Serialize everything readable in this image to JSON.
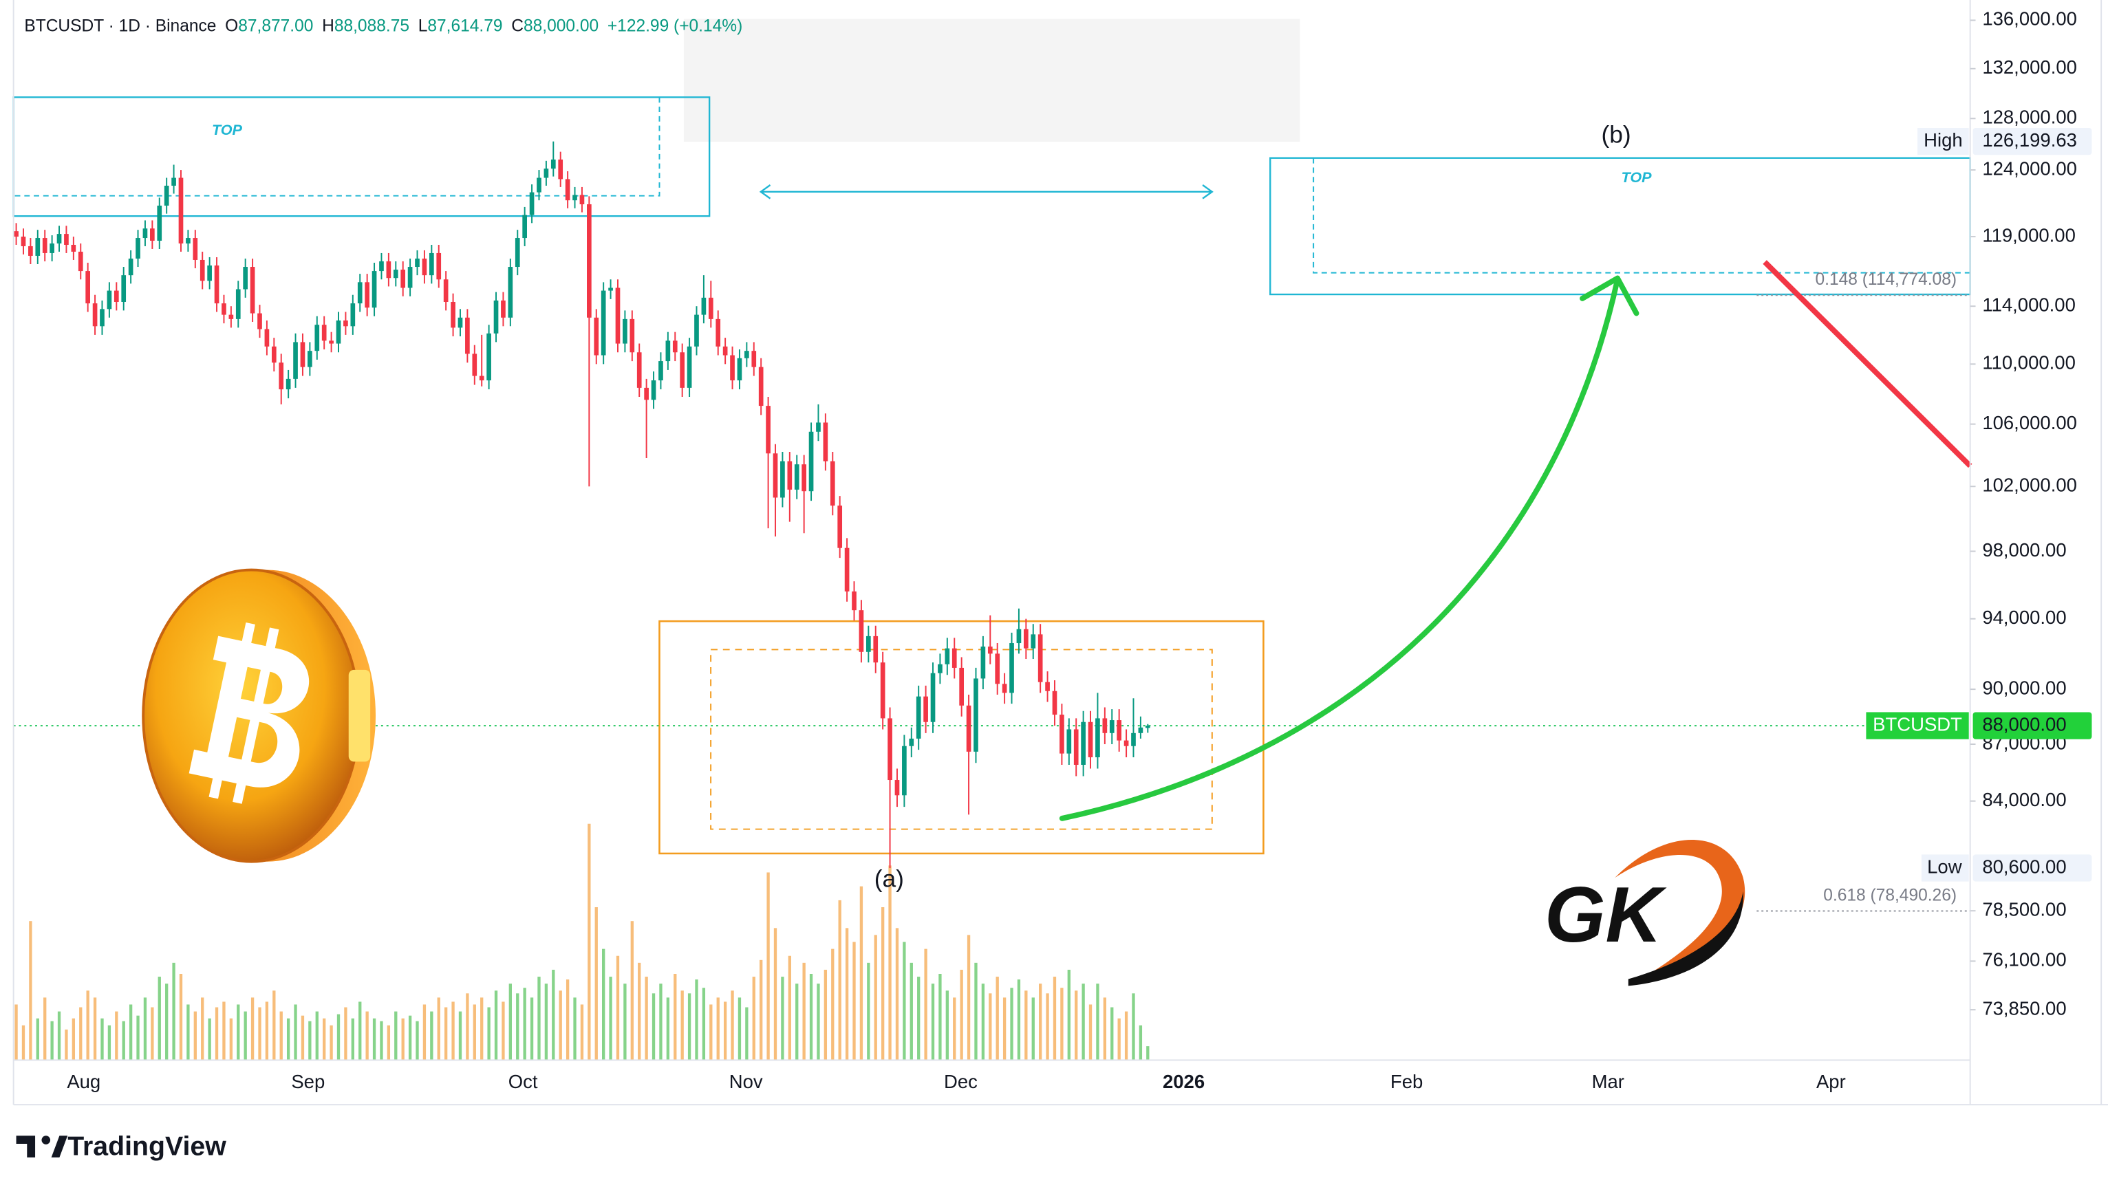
{
  "header": {
    "symbol": "BTCUSDT · 1D · Binance",
    "open_label": "O",
    "open": "87,877.00",
    "high_label": "H",
    "high": "88,088.75",
    "low_label": "L",
    "low": "87,614.79",
    "close_label": "C",
    "close": "88,000.00",
    "change": "+122.99 (+0.14%)"
  },
  "chart_data": {
    "type": "candlestick",
    "symbol": "BTCUSDT",
    "up_color": "#089981",
    "down_color": "#f23645",
    "volume_up_color": "#86d38a",
    "volume_down_color": "#f7bd7a",
    "log_scale": true,
    "grid": false,
    "ylim": [
      71590,
      137711
    ],
    "yticks": [
      {
        "value": 136000,
        "label": "136,000.00"
      },
      {
        "value": 132000,
        "label": "132,000.00"
      },
      {
        "value": 128000,
        "label": "128,000.00"
      },
      {
        "value": 124000,
        "label": "124,000.00"
      },
      {
        "value": 119000,
        "label": "119,000.00"
      },
      {
        "value": 114000,
        "label": "114,000.00"
      },
      {
        "value": 110000,
        "label": "110,000.00"
      },
      {
        "value": 106000,
        "label": "106,000.00"
      },
      {
        "value": 102000,
        "label": "102,000.00"
      },
      {
        "value": 98000,
        "label": "98,000.00"
      },
      {
        "value": 94000,
        "label": "94,000.00"
      },
      {
        "value": 90000,
        "label": "90,000.00"
      },
      {
        "value": 87000,
        "label": "87,000.00"
      },
      {
        "value": 84000,
        "label": "84,000.00"
      },
      {
        "value": 78500,
        "label": "78,500.00"
      },
      {
        "value": 76100,
        "label": "76,100.00"
      },
      {
        "value": 73850,
        "label": "73,850.00"
      }
    ],
    "x_labels": [
      "Aug",
      "Sep",
      "Oct",
      "Nov",
      "Dec",
      "2026",
      "Feb",
      "Mar",
      "Apr"
    ],
    "last_price": {
      "value": 88000,
      "label": "88,000.00"
    },
    "high": {
      "name": "High",
      "value": 126199.63,
      "label": "126,199.63"
    },
    "low": {
      "name": "Low",
      "value": 80600,
      "label": "80,600.00"
    },
    "fib_levels": [
      {
        "value": 114774.08,
        "label": "0.148 (114,774.08)"
      },
      {
        "value": 78490.26,
        "label": "0.618 (78,490.26)"
      }
    ],
    "annotations": {
      "top_left": "TOP",
      "top_right": "TOP",
      "wave_a": "(a)",
      "wave_b": "(b)"
    },
    "candles": [
      [
        119400,
        120000,
        118400,
        119000
      ],
      [
        119000,
        119600,
        117700,
        118300
      ],
      [
        118300,
        118900,
        117000,
        117600
      ],
      [
        117600,
        119500,
        117000,
        118900
      ],
      [
        118900,
        119500,
        117200,
        117800
      ],
      [
        117800,
        119100,
        117200,
        118500
      ],
      [
        118500,
        119800,
        117900,
        119200
      ],
      [
        119200,
        119800,
        117800,
        118400
      ],
      [
        118400,
        119000,
        117300,
        117900
      ],
      [
        117900,
        118500,
        115900,
        116500
      ],
      [
        116500,
        117100,
        113600,
        114200
      ],
      [
        114200,
        114800,
        112000,
        112600
      ],
      [
        112600,
        114400,
        112000,
        113800
      ],
      [
        113800,
        115700,
        113200,
        115100
      ],
      [
        115100,
        115700,
        113700,
        114300
      ],
      [
        114300,
        116800,
        113700,
        116200
      ],
      [
        116200,
        118000,
        115600,
        117400
      ],
      [
        117400,
        119500,
        116800,
        118900
      ],
      [
        118900,
        120200,
        118300,
        119600
      ],
      [
        119600,
        120200,
        118100,
        118700
      ],
      [
        118700,
        121900,
        118100,
        121300
      ],
      [
        121300,
        123400,
        120700,
        122800
      ],
      [
        122800,
        124400,
        122200,
        123400
      ],
      [
        123400,
        124000,
        117900,
        118500
      ],
      [
        118500,
        119500,
        117900,
        118900
      ],
      [
        118900,
        119500,
        116700,
        117300
      ],
      [
        117300,
        117900,
        115200,
        115800
      ],
      [
        115800,
        117500,
        115200,
        116900
      ],
      [
        116900,
        117500,
        113600,
        114200
      ],
      [
        114200,
        114800,
        112800,
        113400
      ],
      [
        113400,
        114000,
        112500,
        113100
      ],
      [
        113100,
        115800,
        112500,
        115200
      ],
      [
        115200,
        117400,
        114600,
        116800
      ],
      [
        116800,
        117400,
        112900,
        113500
      ],
      [
        113500,
        114100,
        111800,
        112400
      ],
      [
        112400,
        113000,
        110600,
        111200
      ],
      [
        111200,
        111800,
        109500,
        110100
      ],
      [
        110100,
        110700,
        107300,
        108300
      ],
      [
        108300,
        109600,
        107700,
        109000
      ],
      [
        109000,
        112100,
        108400,
        111500
      ],
      [
        111500,
        112100,
        109200,
        109800
      ],
      [
        109800,
        111500,
        109200,
        110900
      ],
      [
        110900,
        113300,
        110300,
        112700
      ],
      [
        112700,
        113300,
        111000,
        111600
      ],
      [
        111600,
        112200,
        110800,
        111400
      ],
      [
        111400,
        113600,
        110800,
        113000
      ],
      [
        113000,
        113600,
        112000,
        112600
      ],
      [
        112600,
        114800,
        112000,
        114200
      ],
      [
        114200,
        116300,
        113600,
        115700
      ],
      [
        115700,
        116300,
        113300,
        113900
      ],
      [
        113900,
        117100,
        113300,
        116500
      ],
      [
        116500,
        117800,
        115900,
        117200
      ],
      [
        117200,
        117800,
        115400,
        116000
      ],
      [
        116000,
        117200,
        115400,
        116600
      ],
      [
        116600,
        117200,
        114700,
        115300
      ],
      [
        115300,
        117400,
        114700,
        116800
      ],
      [
        116800,
        118000,
        116200,
        117400
      ],
      [
        117400,
        118000,
        115600,
        116200
      ],
      [
        116200,
        118400,
        115600,
        117800
      ],
      [
        117800,
        118400,
        115300,
        115900
      ],
      [
        115900,
        116500,
        113700,
        114300
      ],
      [
        114300,
        114900,
        111900,
        112500
      ],
      [
        112500,
        113800,
        111900,
        113200
      ],
      [
        113200,
        113800,
        110100,
        110700
      ],
      [
        110700,
        111300,
        108600,
        109200
      ],
      [
        109200,
        112000,
        108500,
        108900
      ],
      [
        108900,
        112700,
        108300,
        112100
      ],
      [
        112100,
        115000,
        111500,
        114400
      ],
      [
        114400,
        115000,
        112600,
        113200
      ],
      [
        113200,
        117400,
        112600,
        116800
      ],
      [
        116800,
        119500,
        116200,
        118900
      ],
      [
        118900,
        121200,
        118300,
        120600
      ],
      [
        120600,
        122900,
        120000,
        122300
      ],
      [
        122300,
        124000,
        121700,
        123400
      ],
      [
        123400,
        124700,
        122800,
        124100
      ],
      [
        124100,
        126199.63,
        123500,
        124800
      ],
      [
        124800,
        125400,
        122700,
        123300
      ],
      [
        123300,
        123900,
        121100,
        121700
      ],
      [
        121700,
        122700,
        121100,
        122100
      ],
      [
        122100,
        122700,
        120800,
        121400
      ],
      [
        121400,
        122000,
        102000,
        113200
      ],
      [
        113200,
        113800,
        110000,
        110600
      ],
      [
        110600,
        115700,
        110000,
        115100
      ],
      [
        115100,
        115900,
        114500,
        115300
      ],
      [
        115300,
        115900,
        110800,
        111400
      ],
      [
        111400,
        113700,
        110800,
        113100
      ],
      [
        113100,
        113700,
        110200,
        110800
      ],
      [
        110800,
        111400,
        107800,
        108400
      ],
      [
        108400,
        109000,
        103800,
        107600
      ],
      [
        107600,
        109500,
        107000,
        108900
      ],
      [
        108900,
        110800,
        108300,
        110200
      ],
      [
        110200,
        112200,
        109600,
        111600
      ],
      [
        111600,
        112200,
        110200,
        110800
      ],
      [
        110800,
        111400,
        107800,
        108400
      ],
      [
        108400,
        111800,
        107800,
        111200
      ],
      [
        111200,
        114000,
        110600,
        113400
      ],
      [
        113400,
        116200,
        112800,
        114600
      ],
      [
        114600,
        115800,
        112500,
        113100
      ],
      [
        113100,
        113700,
        110600,
        111200
      ],
      [
        111200,
        111800,
        110000,
        110600
      ],
      [
        110600,
        111200,
        108300,
        108900
      ],
      [
        108900,
        111000,
        108300,
        110400
      ],
      [
        110400,
        111500,
        109800,
        110900
      ],
      [
        110900,
        111500,
        109200,
        109800
      ],
      [
        109800,
        110400,
        106600,
        107200
      ],
      [
        107200,
        107800,
        99400,
        104100
      ],
      [
        104100,
        104700,
        98900,
        101300
      ],
      [
        101300,
        104200,
        100700,
        103600
      ],
      [
        103600,
        104200,
        99800,
        101800
      ],
      [
        101800,
        104000,
        101200,
        103400
      ],
      [
        103400,
        104000,
        99100,
        101700
      ],
      [
        101700,
        106100,
        101100,
        105500
      ],
      [
        105500,
        107300,
        104900,
        106100
      ],
      [
        106100,
        106700,
        103000,
        103600
      ],
      [
        103600,
        104200,
        100200,
        100800
      ],
      [
        100800,
        101400,
        97600,
        98200
      ],
      [
        98200,
        98800,
        95000,
        95600
      ],
      [
        95600,
        96200,
        93900,
        94500
      ],
      [
        94500,
        95100,
        91500,
        92100
      ],
      [
        92100,
        93600,
        91500,
        93000
      ],
      [
        93000,
        93600,
        90900,
        91500
      ],
      [
        91500,
        92100,
        87800,
        88400
      ],
      [
        88400,
        89000,
        80600,
        85100
      ],
      [
        85100,
        85700,
        83700,
        84300
      ],
      [
        84300,
        87500,
        83700,
        86900
      ],
      [
        86900,
        87900,
        86300,
        87300
      ],
      [
        87300,
        90200,
        86700,
        89600
      ],
      [
        89600,
        90200,
        87600,
        88200
      ],
      [
        88200,
        91500,
        87600,
        90900
      ],
      [
        90900,
        92000,
        90300,
        91400
      ],
      [
        91400,
        92900,
        90800,
        92300
      ],
      [
        92300,
        92900,
        90600,
        91200
      ],
      [
        91200,
        91800,
        88500,
        89100
      ],
      [
        89100,
        89700,
        83300,
        86600
      ],
      [
        86600,
        91200,
        86000,
        90600
      ],
      [
        90600,
        93000,
        90000,
        92400
      ],
      [
        92400,
        94200,
        91400,
        92000
      ],
      [
        92000,
        92600,
        89700,
        90300
      ],
      [
        90300,
        90900,
        89200,
        89800
      ],
      [
        89800,
        93200,
        89200,
        92600
      ],
      [
        92600,
        94600,
        92000,
        93400
      ],
      [
        93400,
        94000,
        91700,
        92300
      ],
      [
        92300,
        93700,
        91700,
        93100
      ],
      [
        93100,
        93700,
        89800,
        90400
      ],
      [
        90400,
        91000,
        89300,
        89900
      ],
      [
        89900,
        90500,
        88000,
        88600
      ],
      [
        88600,
        89200,
        85900,
        86500
      ],
      [
        86500,
        88400,
        85900,
        87800
      ],
      [
        87800,
        88400,
        85300,
        85900
      ],
      [
        85900,
        88800,
        85300,
        88200
      ],
      [
        88200,
        88800,
        85700,
        86300
      ],
      [
        86300,
        89800,
        85700,
        88400
      ],
      [
        88400,
        89000,
        87000,
        87600
      ],
      [
        87600,
        88900,
        87000,
        88300
      ],
      [
        88300,
        88900,
        86600,
        87200
      ],
      [
        87200,
        87800,
        86300,
        86900
      ],
      [
        86900,
        89500,
        86300,
        87600
      ],
      [
        87600,
        88500,
        87300,
        87900
      ],
      [
        87877,
        88088.75,
        87614.79,
        88000
      ]
    ],
    "volume": [
      40,
      25,
      100,
      30,
      45,
      28,
      35,
      22,
      30,
      38,
      50,
      45,
      30,
      25,
      35,
      28,
      40,
      32,
      45,
      38,
      60,
      55,
      70,
      62,
      40,
      35,
      45,
      30,
      38,
      42,
      30,
      40,
      35,
      45,
      38,
      42,
      50,
      35,
      30,
      40,
      32,
      28,
      35,
      30,
      25,
      33,
      38,
      30,
      42,
      35,
      30,
      28,
      25,
      35,
      30,
      32,
      28,
      40,
      35,
      45,
      38,
      42,
      35,
      48,
      40,
      45,
      38,
      50,
      42,
      55,
      48,
      52,
      45,
      60,
      55,
      65,
      50,
      58,
      45,
      40,
      170,
      110,
      80,
      60,
      75,
      55,
      100,
      70,
      60,
      48,
      55,
      45,
      62,
      50,
      48,
      58,
      52,
      40,
      45,
      42,
      50,
      45,
      38,
      60,
      72,
      135,
      95,
      60,
      75,
      55,
      70,
      62,
      55,
      65,
      80,
      115,
      95,
      85,
      125,
      70,
      90,
      110,
      140,
      95,
      85,
      70,
      60,
      80,
      55,
      62,
      50,
      45,
      65,
      90,
      70,
      55,
      48,
      60,
      45,
      52,
      58,
      50,
      45,
      55,
      48,
      60,
      52,
      65,
      50,
      55,
      40,
      55,
      45,
      38,
      30,
      35,
      48,
      25,
      10
    ]
  },
  "logo_text": "GK",
  "footer": {
    "brand": "TradingView"
  }
}
